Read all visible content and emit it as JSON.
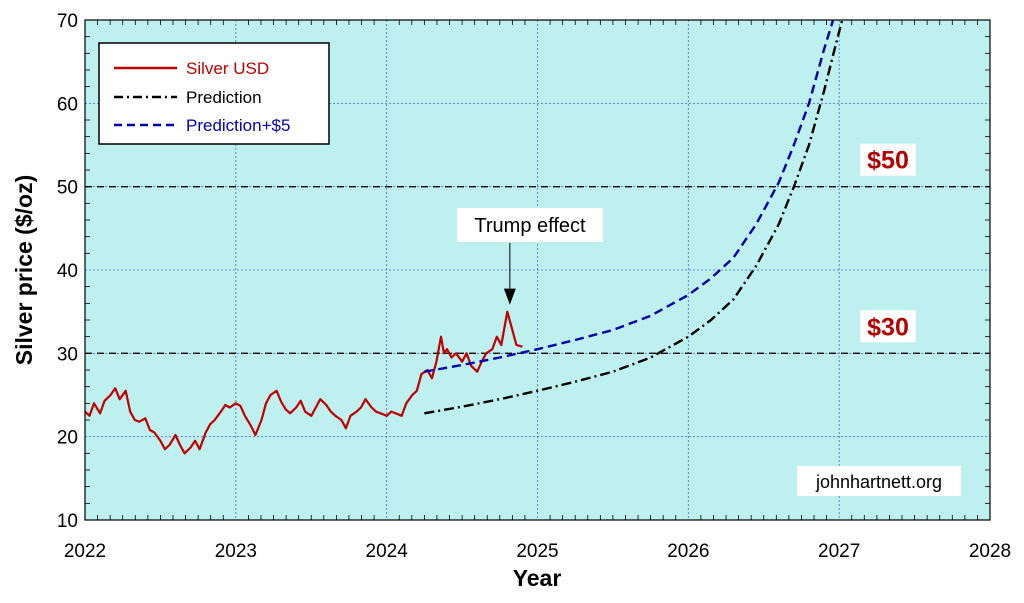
{
  "chart_data": {
    "type": "line",
    "xlabel": "Year",
    "ylabel": "Silver price ($/oz)",
    "xlim": [
      2022,
      2028
    ],
    "ylim": [
      10,
      70
    ],
    "x_ticks": [
      "2022",
      "2023",
      "2024",
      "2025",
      "2026",
      "2027",
      "2028"
    ],
    "y_ticks": [
      "10",
      "20",
      "30",
      "40",
      "50",
      "60",
      "70"
    ],
    "grid": true,
    "legend_position": "top-left",
    "series": [
      {
        "name": "Silver USD",
        "color": "#c00000",
        "style": "solid",
        "x": [
          2022.0,
          2022.03,
          2022.06,
          2022.1,
          2022.13,
          2022.17,
          2022.2,
          2022.23,
          2022.27,
          2022.3,
          2022.33,
          2022.36,
          2022.4,
          2022.43,
          2022.46,
          2022.5,
          2022.53,
          2022.56,
          2022.6,
          2022.63,
          2022.66,
          2022.7,
          2022.73,
          2022.76,
          2022.8,
          2022.83,
          2022.86,
          2022.9,
          2022.93,
          2022.96,
          2023.0,
          2023.03,
          2023.06,
          2023.1,
          2023.13,
          2023.17,
          2023.2,
          2023.23,
          2023.27,
          2023.3,
          2023.33,
          2023.36,
          2023.4,
          2023.43,
          2023.46,
          2023.5,
          2023.53,
          2023.56,
          2023.6,
          2023.63,
          2023.66,
          2023.7,
          2023.73,
          2023.76,
          2023.8,
          2023.83,
          2023.86,
          2023.9,
          2023.93,
          2023.96,
          2024.0,
          2024.03,
          2024.06,
          2024.1,
          2024.13,
          2024.17,
          2024.2,
          2024.23,
          2024.27,
          2024.3,
          2024.33,
          2024.36,
          2024.38,
          2024.4,
          2024.43,
          2024.46,
          2024.5,
          2024.53,
          2024.56,
          2024.6,
          2024.63,
          2024.66,
          2024.7,
          2024.73,
          2024.76,
          2024.8,
          2024.83,
          2024.86,
          2024.9
        ],
        "y": [
          23.0,
          22.5,
          24.0,
          22.8,
          24.3,
          25.0,
          25.8,
          24.5,
          25.5,
          23.0,
          22.0,
          21.8,
          22.2,
          20.8,
          20.5,
          19.5,
          18.5,
          19.0,
          20.2,
          19.0,
          18.0,
          18.7,
          19.5,
          18.5,
          20.5,
          21.5,
          22.0,
          23.0,
          23.8,
          23.5,
          24.0,
          23.7,
          22.5,
          21.3,
          20.2,
          22.0,
          24.0,
          25.0,
          25.5,
          24.2,
          23.3,
          22.8,
          23.5,
          24.3,
          23.0,
          22.5,
          23.5,
          24.5,
          23.8,
          23.0,
          22.5,
          22.0,
          21.0,
          22.5,
          23.0,
          23.5,
          24.5,
          23.5,
          23.0,
          22.8,
          22.5,
          23.0,
          22.8,
          22.5,
          24.0,
          25.0,
          25.5,
          27.5,
          28.0,
          27.0,
          29.0,
          32.0,
          30.0,
          30.5,
          29.5,
          30.0,
          29.0,
          30.0,
          28.5,
          27.8,
          29.0,
          30.0,
          30.5,
          32.0,
          31.0,
          35.0,
          33.0,
          31.0,
          30.8
        ]
      },
      {
        "name": "Prediction",
        "color": "#000000",
        "style": "dashdot",
        "x": [
          2024.25,
          2024.5,
          2024.75,
          2025.0,
          2025.25,
          2025.5,
          2025.75,
          2026.0,
          2026.15,
          2026.3,
          2026.45,
          2026.6,
          2026.7,
          2026.8,
          2026.9,
          2026.97,
          2027.02
        ],
        "y": [
          22.8,
          23.6,
          24.5,
          25.5,
          26.6,
          27.8,
          29.5,
          32.0,
          34.0,
          36.5,
          40.5,
          45.5,
          50.0,
          55.0,
          61.5,
          66.5,
          70.0
        ]
      },
      {
        "name": "Prediction+$5",
        "color": "#0000b0",
        "style": "dashed",
        "x": [
          2024.25,
          2024.5,
          2024.75,
          2025.0,
          2025.25,
          2025.5,
          2025.75,
          2026.0,
          2026.15,
          2026.3,
          2026.45,
          2026.6,
          2026.7,
          2026.8,
          2026.9,
          2026.96
        ],
        "y": [
          27.8,
          28.6,
          29.5,
          30.5,
          31.6,
          32.8,
          34.5,
          37.0,
          39.0,
          41.5,
          45.5,
          50.5,
          55.0,
          60.0,
          66.5,
          70.0
        ]
      }
    ],
    "hlines": [
      {
        "y": 50,
        "label": "$50",
        "color": "#000000"
      },
      {
        "y": 30,
        "label": "$30",
        "color": "#000000"
      }
    ],
    "annotations": [
      {
        "text": "Trump effect",
        "x": 2024.83,
        "y": 35.0
      }
    ],
    "watermark": "johnhartnett.org",
    "colors": {
      "plot_background": "#bff0f0",
      "grid": "#4a6cc9",
      "level_label": "#b30000"
    }
  }
}
